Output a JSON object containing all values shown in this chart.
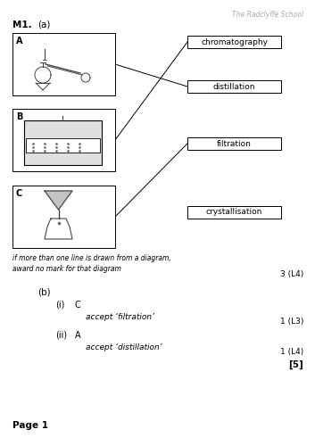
{
  "title_school": "The Radclyffe School",
  "question_label": "M1.",
  "part_a_label": "(a)",
  "bg_color": "#ffffff",
  "box_A_label": "A",
  "box_B_label": "B",
  "box_C_label": "C",
  "method_labels": [
    "chromatography",
    "distillation",
    "filtration",
    "crystallisation"
  ],
  "note_text": "if more than one line is drawn from a diagram,\naward no mark for that diagram",
  "mark_1": "3 (L4)",
  "part_b_label": "(b)",
  "b_i_label": "(i)",
  "b_i_answer": "C",
  "b_i_accept": "accept ‘filtration’",
  "b_i_mark": "1 (L3)",
  "b_ii_label": "(ii)",
  "b_ii_answer": "A",
  "b_ii_accept": "accept ‘distillation’",
  "b_ii_mark": "1 (L4)",
  "total_mark": "[5]",
  "page_label": "Page 1"
}
